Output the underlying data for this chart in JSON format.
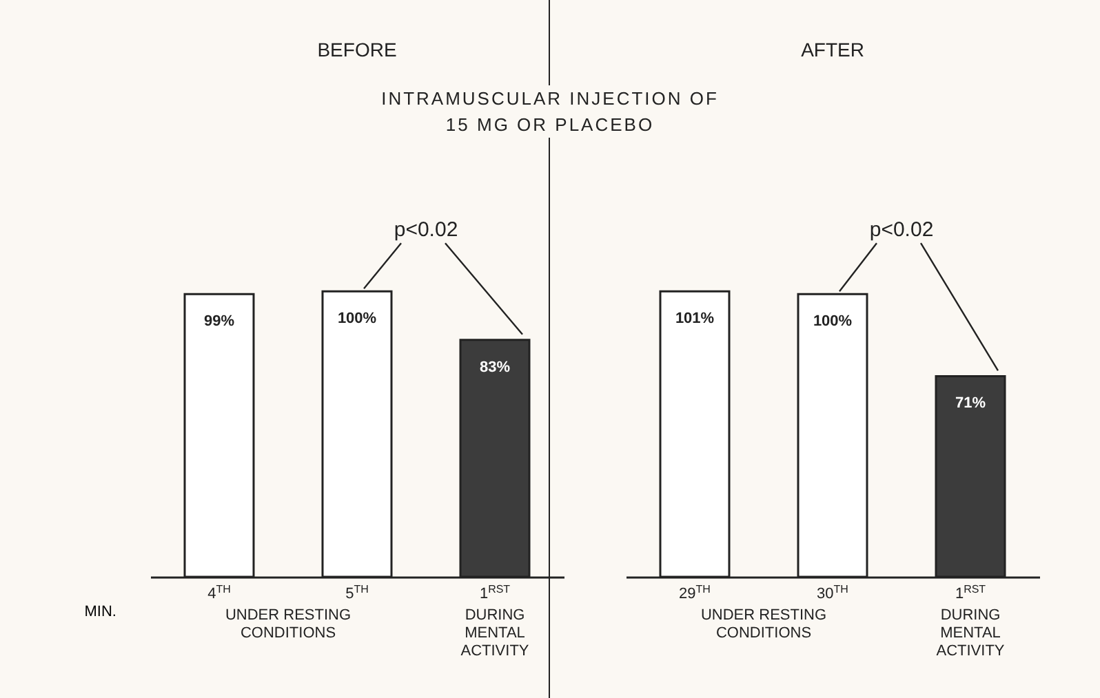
{
  "chart_data": [
    {
      "type": "bar",
      "title": "BEFORE",
      "xlabel": "MIN.",
      "categories": [
        "4$^{TH}$",
        "5$^{TH}$",
        "1$^{RST}$"
      ],
      "values": [
        99,
        100,
        83
      ],
      "colors": [
        "#ffffff",
        "#ffffff",
        "#3c3c3c"
      ],
      "value_labels": [
        "99%",
        "100%",
        "83%"
      ],
      "annotations": [
        "p<0.02",
        "UNDER RESTING CONDITIONS",
        "DURING MENTAL ACTIVITY"
      ]
    },
    {
      "type": "bar",
      "title": "AFTER",
      "subtitle": "INTRAMUSCULAR INJECTION OF 15 MG OR PLACEBO",
      "categories": [
        "29$^{TH}$",
        "30$^{TH}$",
        "1$^{RST}$"
      ],
      "values": [
        101,
        100,
        71
      ],
      "colors": [
        "#ffffff",
        "#ffffff",
        "#3c3c3c"
      ],
      "value_labels": [
        "101%",
        "100%",
        "71%"
      ],
      "annotations": [
        "p<0.02",
        "UNDER RESTING CONDITIONS",
        "DURING MENTAL ACTIVITY"
      ]
    }
  ]
}
